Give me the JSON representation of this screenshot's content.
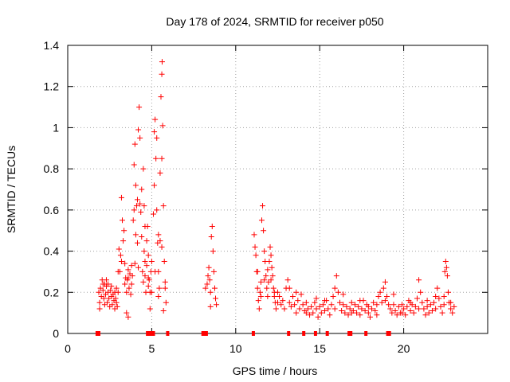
{
  "chart_data": {
    "type": "scatter",
    "title": "Day 178 of 2024, SRMTID for receiver p050",
    "xlabel": "GPS time / hours",
    "ylabel": "SRMTID / TECUs",
    "xlim": [
      0,
      25
    ],
    "ylim": [
      0,
      1.4
    ],
    "xticks": [
      0,
      5,
      10,
      15,
      20
    ],
    "yticks": [
      0,
      0.2,
      0.4,
      0.6,
      0.8,
      1,
      1.2,
      1.4
    ],
    "xtick_labels": [
      "0",
      "5",
      "10",
      "15",
      "20"
    ],
    "ytick_labels": [
      "0",
      "0.2",
      "0.4",
      "0.6",
      "0.8",
      "1",
      "1.2",
      "1.4"
    ],
    "grid": true,
    "marker": "+",
    "marker_color": "#ff0000",
    "series": [
      {
        "name": "SRMTID",
        "points": [
          [
            1.85,
            0.2
          ],
          [
            1.9,
            0.15
          ],
          [
            1.95,
            0.22
          ],
          [
            2.0,
            0.18
          ],
          [
            2.05,
            0.26
          ],
          [
            2.1,
            0.21
          ],
          [
            2.15,
            0.17
          ],
          [
            2.2,
            0.24
          ],
          [
            2.25,
            0.19
          ],
          [
            2.3,
            0.23
          ],
          [
            2.35,
            0.15
          ],
          [
            2.4,
            0.2
          ],
          [
            2.45,
            0.17
          ],
          [
            2.5,
            0.13
          ],
          [
            2.55,
            0.21
          ],
          [
            2.6,
            0.18
          ],
          [
            2.65,
            0.14
          ],
          [
            2.7,
            0.19
          ],
          [
            2.75,
            0.16
          ],
          [
            2.8,
            0.12
          ],
          [
            2.85,
            0.17
          ],
          [
            2.9,
            0.15
          ],
          [
            2.95,
            0.13
          ],
          [
            3.0,
            0.2
          ],
          [
            2.2,
            0.14
          ],
          [
            2.4,
            0.24
          ],
          [
            2.6,
            0.23
          ],
          [
            2.8,
            0.2
          ],
          [
            2.9,
            0.22
          ],
          [
            3.05,
            0.41
          ],
          [
            3.1,
            0.3
          ],
          [
            3.15,
            0.38
          ],
          [
            3.2,
            0.66
          ],
          [
            3.25,
            0.55
          ],
          [
            3.3,
            0.45
          ],
          [
            3.35,
            0.5
          ],
          [
            3.4,
            0.34
          ],
          [
            3.45,
            0.27
          ],
          [
            3.5,
            0.2
          ],
          [
            3.55,
            0.26
          ],
          [
            3.6,
            0.31
          ],
          [
            3.65,
            0.22
          ],
          [
            3.7,
            0.29
          ],
          [
            3.75,
            0.19
          ],
          [
            3.8,
            0.33
          ],
          [
            3.85,
            0.28
          ],
          [
            3.9,
            0.55
          ],
          [
            3.95,
            0.82
          ],
          [
            4.0,
            0.92
          ],
          [
            4.05,
            0.72
          ],
          [
            4.1,
            0.62
          ],
          [
            4.15,
            0.44
          ],
          [
            4.2,
            0.99
          ],
          [
            4.25,
            1.1
          ],
          [
            4.3,
            0.95
          ],
          [
            4.35,
            0.59
          ],
          [
            4.4,
            0.47
          ],
          [
            4.45,
            0.3
          ],
          [
            4.5,
            0.25
          ],
          [
            4.55,
            0.4
          ],
          [
            4.6,
            0.35
          ],
          [
            4.65,
            0.2
          ],
          [
            4.7,
            0.45
          ],
          [
            4.75,
            0.52
          ],
          [
            4.8,
            0.38
          ],
          [
            4.85,
            0.26
          ],
          [
            4.9,
            0.12
          ],
          [
            4.95,
            0.3
          ],
          [
            5.0,
            0.2
          ],
          [
            3.5,
            0.1
          ],
          [
            3.6,
            0.08
          ],
          [
            3.95,
            0.6
          ],
          [
            4.05,
            0.48
          ],
          [
            4.15,
            0.65
          ],
          [
            4.3,
            0.63
          ],
          [
            4.5,
            0.8
          ],
          [
            4.55,
            0.62
          ],
          [
            4.6,
            0.28
          ],
          [
            4.7,
            0.33
          ],
          [
            4.8,
            0.27
          ],
          [
            4.9,
            0.2
          ],
          [
            5.1,
            0.58
          ],
          [
            5.15,
            0.98
          ],
          [
            5.2,
            1.04
          ],
          [
            5.25,
            0.85
          ],
          [
            5.3,
            0.6
          ],
          [
            5.35,
            0.44
          ],
          [
            5.4,
            0.3
          ],
          [
            5.45,
            0.22
          ],
          [
            5.5,
            0.78
          ],
          [
            5.55,
            1.15
          ],
          [
            5.6,
            1.26
          ],
          [
            5.62,
            1.32
          ],
          [
            5.65,
            1.01
          ],
          [
            5.7,
            0.62
          ],
          [
            5.75,
            0.35
          ],
          [
            5.8,
            0.22
          ],
          [
            5.85,
            0.15
          ],
          [
            5.7,
            0.11
          ],
          [
            5.6,
            0.85
          ],
          [
            5.5,
            0.45
          ],
          [
            5.3,
            0.95
          ],
          [
            5.15,
            0.72
          ],
          [
            5.4,
            0.18
          ],
          [
            8.2,
            0.22
          ],
          [
            8.3,
            0.24
          ],
          [
            8.35,
            0.28
          ],
          [
            8.4,
            0.32
          ],
          [
            8.45,
            0.26
          ],
          [
            8.5,
            0.2
          ],
          [
            8.55,
            0.47
          ],
          [
            8.6,
            0.52
          ],
          [
            8.65,
            0.4
          ],
          [
            8.7,
            0.3
          ],
          [
            8.75,
            0.22
          ],
          [
            8.8,
            0.17
          ],
          [
            8.85,
            0.14
          ],
          [
            8.5,
            0.13
          ],
          [
            11.1,
            0.48
          ],
          [
            11.15,
            0.42
          ],
          [
            11.2,
            0.38
          ],
          [
            11.25,
            0.3
          ],
          [
            11.3,
            0.22
          ],
          [
            11.35,
            0.16
          ],
          [
            11.4,
            0.12
          ],
          [
            11.45,
            0.2
          ],
          [
            11.5,
            0.25
          ],
          [
            11.55,
            0.55
          ],
          [
            11.6,
            0.62
          ],
          [
            11.65,
            0.5
          ],
          [
            11.7,
            0.4
          ],
          [
            11.75,
            0.35
          ],
          [
            11.8,
            0.28
          ],
          [
            11.85,
            0.22
          ],
          [
            11.9,
            0.18
          ],
          [
            11.95,
            0.25
          ],
          [
            12.0,
            0.35
          ],
          [
            12.05,
            0.42
          ],
          [
            12.1,
            0.38
          ],
          [
            12.15,
            0.32
          ],
          [
            12.2,
            0.28
          ],
          [
            12.25,
            0.22
          ],
          [
            12.3,
            0.18
          ],
          [
            12.35,
            0.15
          ],
          [
            12.4,
            0.12
          ],
          [
            12.5,
            0.2
          ],
          [
            12.6,
            0.18
          ],
          [
            12.7,
            0.14
          ],
          [
            12.8,
            0.16
          ],
          [
            12.9,
            0.12
          ],
          [
            13.0,
            0.22
          ],
          [
            13.1,
            0.26
          ],
          [
            13.2,
            0.15
          ],
          [
            13.3,
            0.13
          ],
          [
            13.4,
            0.18
          ],
          [
            13.5,
            0.14
          ],
          [
            13.6,
            0.1
          ],
          [
            13.7,
            0.16
          ],
          [
            13.8,
            0.12
          ],
          [
            13.9,
            0.19
          ],
          [
            14.0,
            0.14
          ],
          [
            14.1,
            0.11
          ],
          [
            14.2,
            0.15
          ],
          [
            14.3,
            0.12
          ],
          [
            14.4,
            0.09
          ],
          [
            14.5,
            0.13
          ],
          [
            14.6,
            0.1
          ],
          [
            14.7,
            0.15
          ],
          [
            14.8,
            0.12
          ],
          [
            14.9,
            0.08
          ],
          [
            15.0,
            0.13
          ],
          [
            15.1,
            0.1
          ],
          [
            15.2,
            0.14
          ],
          [
            15.3,
            0.11
          ],
          [
            15.4,
            0.16
          ],
          [
            15.5,
            0.12
          ],
          [
            15.6,
            0.09
          ],
          [
            15.7,
            0.14
          ],
          [
            15.8,
            0.18
          ],
          [
            15.9,
            0.22
          ],
          [
            16.0,
            0.28
          ],
          [
            16.1,
            0.2
          ],
          [
            16.2,
            0.15
          ],
          [
            16.3,
            0.11
          ],
          [
            16.4,
            0.14
          ],
          [
            16.5,
            0.1
          ],
          [
            16.6,
            0.13
          ],
          [
            16.7,
            0.09
          ],
          [
            16.8,
            0.12
          ],
          [
            16.9,
            0.15
          ],
          [
            17.0,
            0.11
          ],
          [
            17.1,
            0.14
          ],
          [
            17.2,
            0.1
          ],
          [
            17.3,
            0.13
          ],
          [
            17.4,
            0.09
          ],
          [
            17.5,
            0.12
          ],
          [
            17.6,
            0.16
          ],
          [
            17.7,
            0.11
          ],
          [
            17.8,
            0.14
          ],
          [
            17.9,
            0.1
          ],
          [
            18.0,
            0.08
          ],
          [
            18.1,
            0.12
          ],
          [
            18.2,
            0.15
          ],
          [
            18.3,
            0.11
          ],
          [
            18.4,
            0.14
          ],
          [
            18.5,
            0.18
          ],
          [
            18.6,
            0.2
          ],
          [
            18.7,
            0.15
          ],
          [
            18.8,
            0.22
          ],
          [
            18.9,
            0.25
          ],
          [
            19.0,
            0.18
          ],
          [
            19.1,
            0.14
          ],
          [
            19.2,
            0.12
          ],
          [
            19.3,
            0.1
          ],
          [
            19.4,
            0.14
          ],
          [
            19.5,
            0.11
          ],
          [
            19.6,
            0.09
          ],
          [
            19.7,
            0.13
          ],
          [
            19.8,
            0.1
          ],
          [
            19.9,
            0.14
          ],
          [
            20.0,
            0.12
          ],
          [
            20.1,
            0.09
          ],
          [
            20.2,
            0.13
          ],
          [
            20.3,
            0.16
          ],
          [
            20.4,
            0.11
          ],
          [
            20.5,
            0.14
          ],
          [
            20.6,
            0.1
          ],
          [
            20.7,
            0.13
          ],
          [
            20.8,
            0.17
          ],
          [
            20.9,
            0.26
          ],
          [
            21.0,
            0.2
          ],
          [
            21.1,
            0.15
          ],
          [
            21.2,
            0.12
          ],
          [
            21.3,
            0.09
          ],
          [
            21.4,
            0.13
          ],
          [
            21.5,
            0.1
          ],
          [
            21.6,
            0.14
          ],
          [
            21.7,
            0.11
          ],
          [
            21.8,
            0.15
          ],
          [
            21.9,
            0.18
          ],
          [
            22.0,
            0.22
          ],
          [
            22.1,
            0.17
          ],
          [
            22.2,
            0.13
          ],
          [
            22.3,
            0.1
          ],
          [
            22.4,
            0.14
          ],
          [
            22.45,
            0.3
          ],
          [
            22.5,
            0.35
          ],
          [
            22.55,
            0.32
          ],
          [
            22.6,
            0.28
          ],
          [
            22.65,
            0.2
          ],
          [
            22.7,
            0.15
          ],
          [
            22.8,
            0.12
          ],
          [
            22.9,
            0.1
          ],
          [
            23.0,
            0.13
          ],
          [
            1.9,
            0.12
          ],
          [
            2.1,
            0.24
          ],
          [
            2.3,
            0.26
          ],
          [
            3.0,
            0.3
          ],
          [
            3.2,
            0.35
          ],
          [
            3.4,
            0.24
          ],
          [
            3.6,
            0.27
          ],
          [
            3.8,
            0.24
          ],
          [
            4.0,
            0.34
          ],
          [
            4.2,
            0.32
          ],
          [
            4.4,
            0.7
          ],
          [
            4.6,
            0.52
          ],
          [
            4.8,
            0.23
          ],
          [
            5.0,
            0.35
          ],
          [
            5.2,
            0.3
          ],
          [
            5.4,
            0.48
          ],
          [
            5.6,
            0.42
          ],
          [
            5.8,
            0.25
          ],
          [
            11.3,
            0.3
          ],
          [
            11.5,
            0.18
          ],
          [
            11.7,
            0.26
          ],
          [
            11.9,
            0.31
          ],
          [
            12.1,
            0.26
          ],
          [
            12.3,
            0.2
          ],
          [
            12.5,
            0.15
          ],
          [
            13.2,
            0.22
          ],
          [
            13.6,
            0.2
          ],
          [
            14.2,
            0.1
          ],
          [
            14.8,
            0.17
          ],
          [
            15.3,
            0.16
          ],
          [
            15.9,
            0.12
          ],
          [
            16.4,
            0.19
          ],
          [
            16.9,
            0.1
          ],
          [
            17.4,
            0.16
          ],
          [
            17.9,
            0.13
          ],
          [
            18.4,
            0.09
          ],
          [
            18.9,
            0.16
          ],
          [
            19.4,
            0.19
          ],
          [
            19.9,
            0.1
          ],
          [
            20.4,
            0.15
          ],
          [
            20.9,
            0.12
          ],
          [
            21.4,
            0.16
          ],
          [
            21.9,
            0.12
          ],
          [
            22.4,
            0.18
          ],
          [
            22.8,
            0.15
          ]
        ]
      }
    ],
    "gap_markers_x": [
      1.75,
      1.85,
      4.75,
      4.85,
      5.0,
      5.1,
      5.95,
      8.05,
      8.15,
      8.25,
      11.05,
      13.15,
      14.05,
      14.75,
      15.45,
      16.75,
      16.85,
      17.75,
      19.05,
      19.15
    ]
  }
}
